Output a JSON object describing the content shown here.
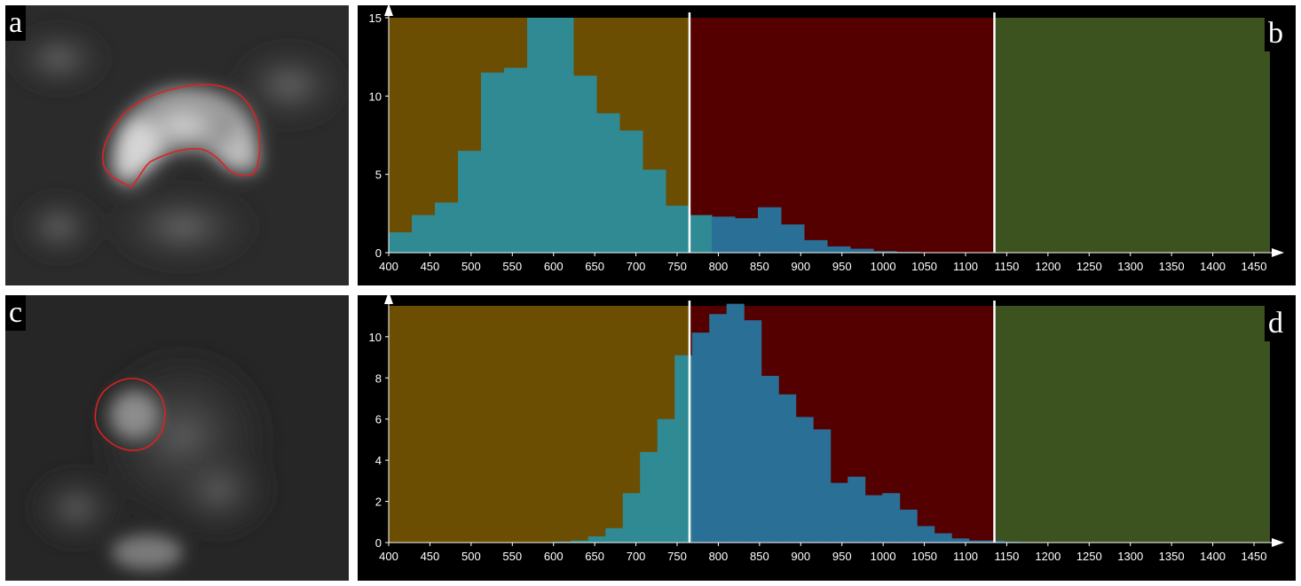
{
  "panels": {
    "a": {
      "letter": "a"
    },
    "b": {
      "letter": "b"
    },
    "c": {
      "letter": "c"
    },
    "d": {
      "letter": "d"
    }
  },
  "colors": {
    "zone_low": "#6b4e02",
    "zone_mid": "#550000",
    "zone_high": "#3c5320",
    "bar_low": "#2f8a94",
    "bar_high": "#2a6f96",
    "divider": "#ffffff",
    "roi_outline": "#e02020"
  },
  "chart_data": [
    {
      "type": "bar",
      "panel": "b",
      "title": "",
      "xlabel": "",
      "ylabel": "",
      "xlim": [
        400,
        1450
      ],
      "ylim": [
        0,
        15
      ],
      "x_ticks": [
        400,
        450,
        500,
        550,
        600,
        650,
        700,
        750,
        800,
        850,
        900,
        950,
        1000,
        1050,
        1100,
        1150,
        1200,
        1250,
        1300,
        1350,
        1400,
        1450
      ],
      "y_ticks": [
        0,
        5,
        10,
        15
      ],
      "thresholds": [
        765,
        1135
      ],
      "bin_width": 28,
      "bin_starts": [
        400,
        428,
        456,
        484,
        512,
        540,
        568,
        596,
        624,
        652,
        680,
        708,
        736,
        764,
        792,
        820,
        848,
        876,
        904,
        932,
        960,
        988,
        1016
      ],
      "values": [
        1.3,
        2.4,
        3.2,
        6.5,
        11.5,
        11.8,
        15.0,
        15.0,
        11.3,
        8.9,
        7.8,
        5.3,
        3.0,
        2.4,
        2.3,
        2.2,
        2.9,
        1.8,
        0.8,
        0.4,
        0.25,
        0.1,
        0.05
      ],
      "grid": false
    },
    {
      "type": "bar",
      "panel": "d",
      "title": "",
      "xlabel": "",
      "ylabel": "",
      "xlim": [
        400,
        1450
      ],
      "ylim": [
        0,
        11.5
      ],
      "x_ticks": [
        400,
        450,
        500,
        550,
        600,
        650,
        700,
        750,
        800,
        850,
        900,
        950,
        1000,
        1050,
        1100,
        1150,
        1200,
        1250,
        1300,
        1350,
        1400,
        1450
      ],
      "y_ticks": [
        0,
        2,
        4,
        6,
        8,
        10
      ],
      "thresholds": [
        765,
        1135
      ],
      "bin_width": 21,
      "bin_starts": [
        600,
        621,
        642,
        663,
        684,
        705,
        726,
        747,
        768,
        789,
        810,
        831,
        852,
        873,
        894,
        915,
        936,
        957,
        978,
        999,
        1020,
        1041,
        1062,
        1083,
        1104,
        1125,
        1146
      ],
      "values": [
        0.05,
        0.1,
        0.3,
        0.7,
        2.4,
        4.4,
        6.0,
        9.1,
        10.2,
        11.1,
        11.6,
        10.8,
        8.1,
        7.2,
        6.1,
        5.5,
        2.9,
        3.2,
        2.3,
        2.4,
        1.6,
        0.8,
        0.45,
        0.2,
        0.1,
        0.1,
        0.05
      ],
      "grid": false
    }
  ]
}
